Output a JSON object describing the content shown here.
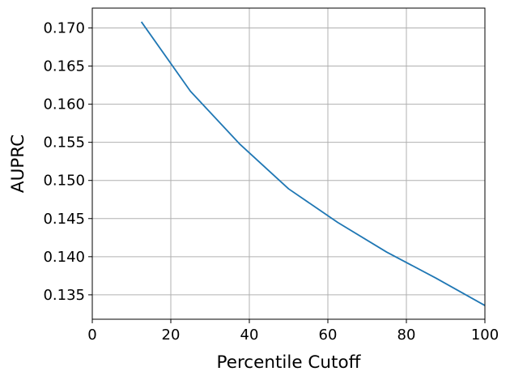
{
  "chart_data": {
    "type": "line",
    "xlabel": "Percentile Cutoff",
    "ylabel": "AUPRC",
    "xlim": [
      0,
      100
    ],
    "ylim": [
      0.1318,
      0.1726
    ],
    "xticks": [
      0,
      20,
      40,
      60,
      80,
      100
    ],
    "xtick_labels": [
      "0",
      "20",
      "40",
      "60",
      "80",
      "100"
    ],
    "yticks": [
      0.135,
      0.14,
      0.145,
      0.15,
      0.155,
      0.16,
      0.165,
      0.17
    ],
    "ytick_labels": [
      "0.135",
      "0.140",
      "0.145",
      "0.150",
      "0.155",
      "0.160",
      "0.165",
      "0.170"
    ],
    "grid": true,
    "series": [
      {
        "color": "#1f77b4",
        "x": [
          12.5,
          25,
          37.5,
          50,
          62.5,
          75,
          87.5,
          100
        ],
        "y": [
          0.1708,
          0.1617,
          0.1548,
          0.1489,
          0.1445,
          0.1406,
          0.1372,
          0.1336
        ]
      }
    ]
  }
}
